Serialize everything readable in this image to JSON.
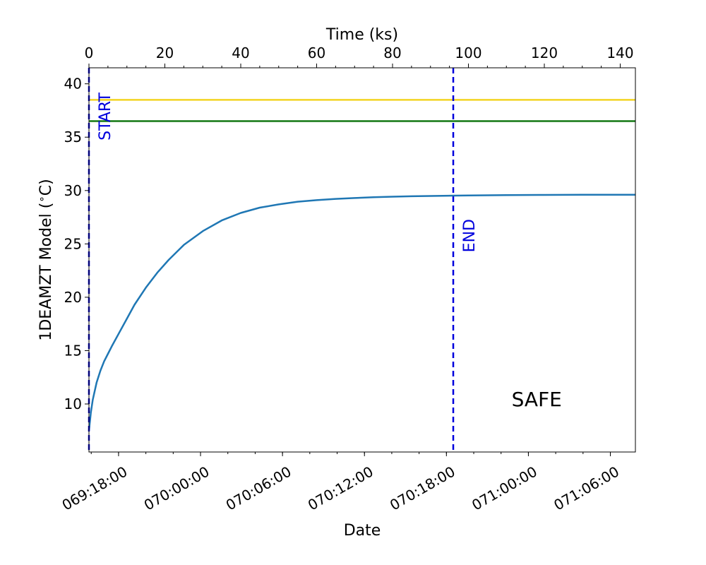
{
  "chart_data": {
    "type": "line",
    "xlabel": "Date",
    "ylabel": "1DEAMZT Model ($^\\circ$C)",
    "top_xlabel": "Time (ks)",
    "ylim": [
      5.5,
      41.5
    ],
    "yticks": [
      10,
      15,
      20,
      25,
      30,
      35,
      40
    ],
    "top_xlim": [
      0,
      144
    ],
    "top_xticks": [
      0,
      20,
      40,
      60,
      80,
      100,
      120,
      140
    ],
    "top_xticks_minor_step": 5,
    "date_ticks": [
      {
        "label": "069:18:00",
        "t_ks": 7.8
      },
      {
        "label": "070:00:00",
        "t_ks": 29.4
      },
      {
        "label": "070:06:00",
        "t_ks": 51.0
      },
      {
        "label": "070:12:00",
        "t_ks": 72.6
      },
      {
        "label": "070:18:00",
        "t_ks": 94.2
      },
      {
        "label": "071:00:00",
        "t_ks": 115.8
      },
      {
        "label": "071:06:00",
        "t_ks": 137.4
      }
    ],
    "date_minor_step_ks": 7.2,
    "series": [
      {
        "color": "#1f77b4",
        "x": [
          0,
          0.5,
          1,
          2,
          3,
          4,
          5,
          6,
          8,
          10,
          12,
          15,
          18,
          21,
          25,
          30,
          35,
          40,
          45,
          50,
          55,
          60,
          65,
          70,
          75,
          80,
          85,
          90,
          96,
          100,
          110,
          120,
          130,
          144
        ],
        "y": [
          7.5,
          9.2,
          10.4,
          12.0,
          13.1,
          14.0,
          14.7,
          15.4,
          16.7,
          18.0,
          19.3,
          20.9,
          22.3,
          23.5,
          24.9,
          26.2,
          27.2,
          27.9,
          28.4,
          28.7,
          28.95,
          29.1,
          29.22,
          29.3,
          29.37,
          29.42,
          29.46,
          29.49,
          29.52,
          29.54,
          29.57,
          29.59,
          29.6,
          29.6
        ]
      }
    ],
    "hlines": [
      {
        "y": 38.5,
        "color": "#f2d422"
      },
      {
        "y": 36.5,
        "color": "#147814"
      }
    ],
    "vlines": [
      {
        "x": 0,
        "label": "START",
        "color": "#0000dd"
      },
      {
        "x": 96,
        "label": "END",
        "color": "#0000dd"
      }
    ],
    "status_text": "SAFE",
    "status_pos": {
      "x": 118,
      "y": 9.8
    }
  }
}
